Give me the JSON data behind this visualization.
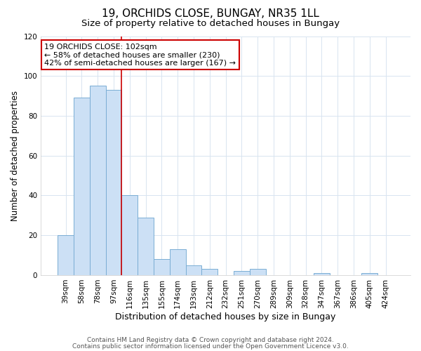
{
  "title": "19, ORCHIDS CLOSE, BUNGAY, NR35 1LL",
  "subtitle": "Size of property relative to detached houses in Bungay",
  "xlabel": "Distribution of detached houses by size in Bungay",
  "ylabel": "Number of detached properties",
  "bar_labels": [
    "39sqm",
    "58sqm",
    "78sqm",
    "97sqm",
    "116sqm",
    "135sqm",
    "155sqm",
    "174sqm",
    "193sqm",
    "212sqm",
    "232sqm",
    "251sqm",
    "270sqm",
    "289sqm",
    "309sqm",
    "328sqm",
    "347sqm",
    "367sqm",
    "386sqm",
    "405sqm",
    "424sqm"
  ],
  "bar_values": [
    20,
    89,
    95,
    93,
    40,
    29,
    8,
    13,
    5,
    3,
    0,
    2,
    3,
    0,
    0,
    0,
    1,
    0,
    0,
    1,
    0
  ],
  "bar_color": "#cce0f5",
  "bar_edge_color": "#7aadd4",
  "vline_x": 3.5,
  "vline_color": "#cc0000",
  "ylim": [
    0,
    120
  ],
  "yticks": [
    0,
    20,
    40,
    60,
    80,
    100,
    120
  ],
  "annotation_line1": "19 ORCHIDS CLOSE: 102sqm",
  "annotation_line2": "← 58% of detached houses are smaller (230)",
  "annotation_line3": "42% of semi-detached houses are larger (167) →",
  "annotation_box_color": "#ffffff",
  "annotation_box_edge_color": "#cc0000",
  "footer_line1": "Contains HM Land Registry data © Crown copyright and database right 2024.",
  "footer_line2": "Contains public sector information licensed under the Open Government Licence v3.0.",
  "title_fontsize": 11,
  "subtitle_fontsize": 9.5,
  "xlabel_fontsize": 9,
  "ylabel_fontsize": 8.5,
  "tick_fontsize": 7.5,
  "annotation_fontsize": 8,
  "footer_fontsize": 6.5,
  "grid_color": "#d8e4f0"
}
